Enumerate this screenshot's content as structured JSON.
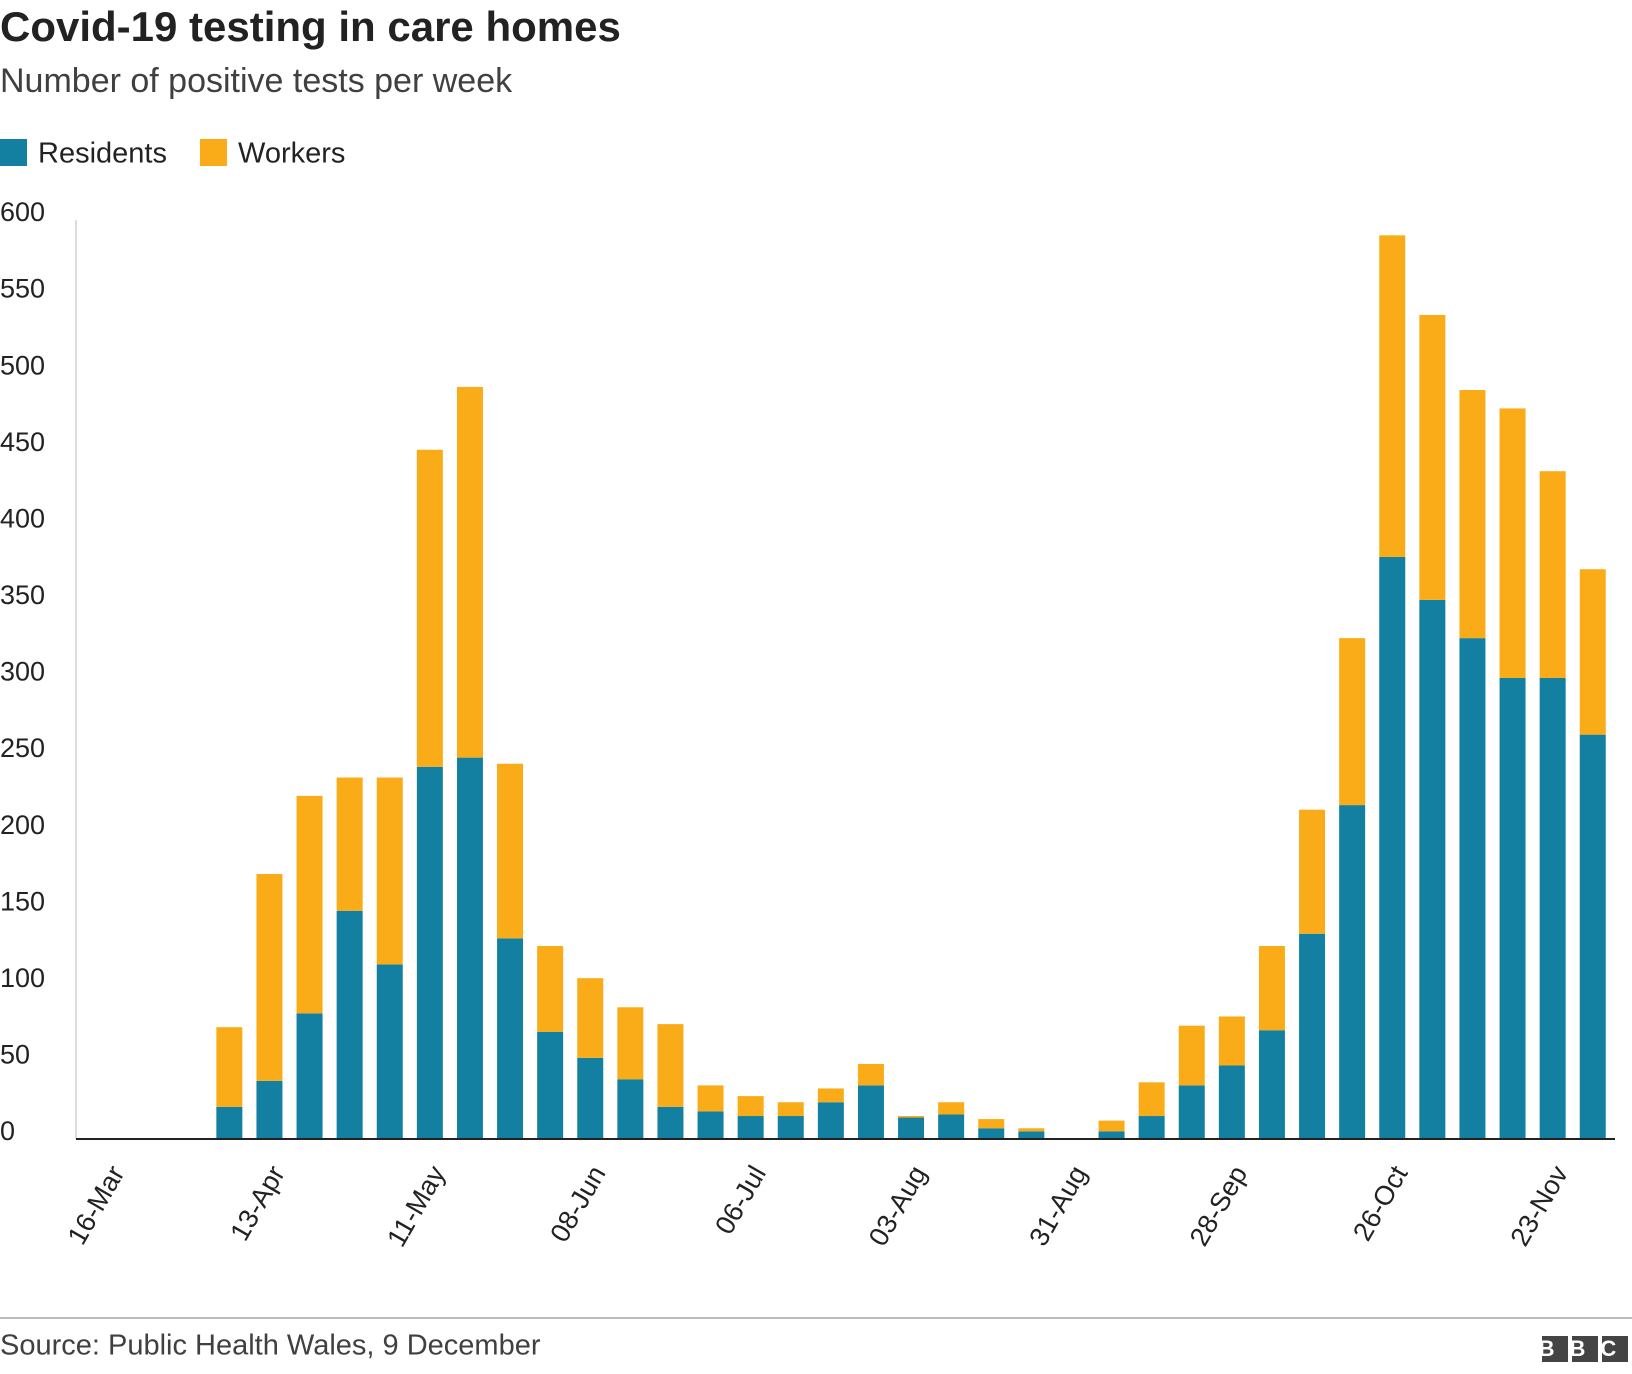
{
  "chart_data": {
    "type": "stacked_bar",
    "title": "Covid-19 testing in care homes",
    "subtitle": "Number of positive tests per week",
    "source": "Source: Public Health Wales, 9 December",
    "logo": "BBC",
    "categories": [
      "16-Mar",
      null,
      null,
      null,
      "13-Apr",
      null,
      null,
      null,
      "11-May",
      null,
      null,
      null,
      "08-Jun",
      null,
      null,
      null,
      "06-Jul",
      null,
      null,
      null,
      "03-Aug",
      null,
      null,
      null,
      "31-Aug",
      null,
      null,
      null,
      "28-Sep",
      null,
      null,
      null,
      "26-Oct",
      null,
      null,
      null,
      "23-Nov",
      null
    ],
    "series": [
      {
        "name": "Residents",
        "color": "#1380A1",
        "values": [
          0,
          0,
          0,
          21,
          38,
          82,
          149,
          114,
          243,
          249,
          131,
          70,
          53,
          39,
          21,
          18,
          15,
          15,
          24,
          35,
          14,
          16,
          7,
          5,
          0,
          5,
          15,
          35,
          48,
          71,
          134,
          218,
          380,
          352,
          327,
          301,
          301,
          264
        ]
      },
      {
        "name": "Workers",
        "color": "#FAAB18",
        "values": [
          0,
          0,
          0,
          52,
          135,
          142,
          87,
          122,
          207,
          242,
          114,
          56,
          52,
          47,
          54,
          17,
          13,
          9,
          9,
          14,
          1,
          8,
          6,
          2,
          0,
          7,
          22,
          39,
          32,
          55,
          81,
          109,
          210,
          186,
          162,
          176,
          135,
          108
        ]
      }
    ],
    "ylim": [
      0,
      600
    ],
    "yticks": [
      0,
      50,
      100,
      150,
      200,
      250,
      300,
      350,
      400,
      450,
      500,
      550,
      600
    ],
    "grid": false,
    "legend": "top-left"
  }
}
